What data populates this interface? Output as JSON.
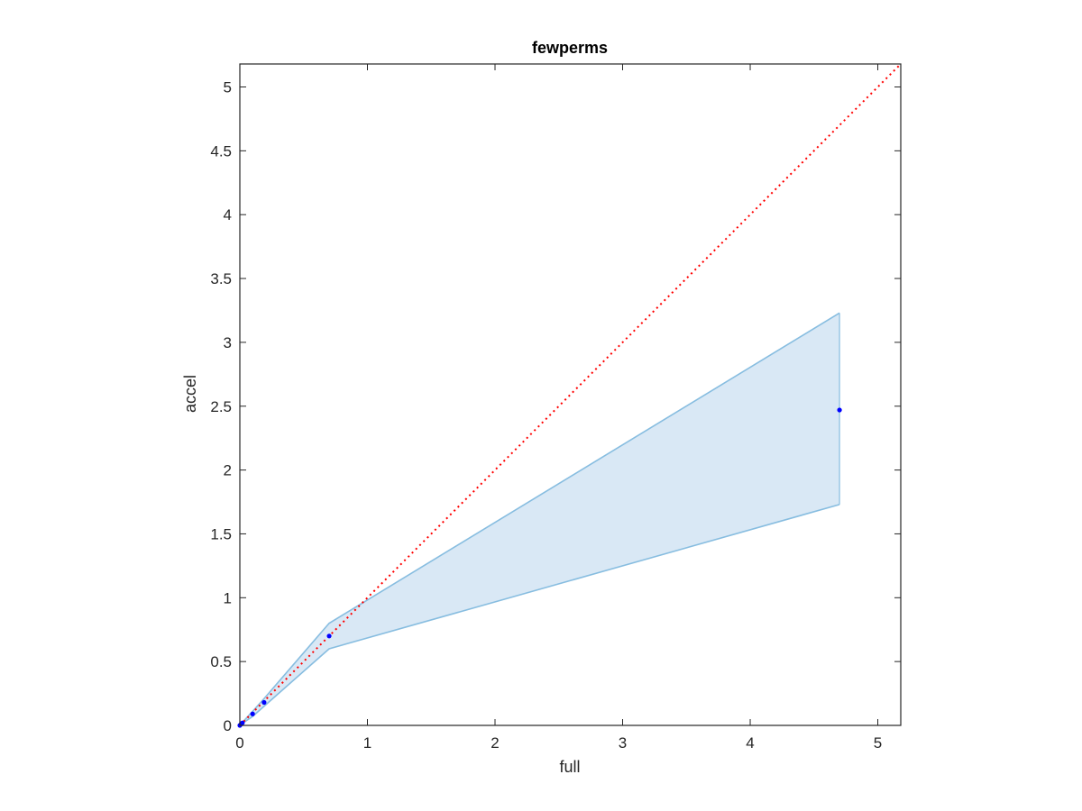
{
  "chart_data": {
    "type": "line",
    "title": "fewperms",
    "xlabel": "full",
    "ylabel": "accel",
    "xlim": [
      0,
      5.18
    ],
    "ylim": [
      0,
      5.18
    ],
    "xticks": [
      0,
      1,
      2,
      3,
      4,
      5
    ],
    "xtick_labels": [
      "0",
      "1",
      "2",
      "3",
      "4",
      "5"
    ],
    "yticks": [
      0,
      0.5,
      1,
      1.5,
      2,
      2.5,
      3,
      3.5,
      4,
      4.5,
      5
    ],
    "ytick_labels": [
      "0",
      "0.5",
      "1",
      "1.5",
      "2",
      "2.5",
      "3",
      "3.5",
      "4",
      "4.5",
      "5"
    ],
    "grid": false,
    "band": {
      "x": [
        0,
        0.01,
        0.02,
        0.1,
        0.19,
        0.7,
        4.7
      ],
      "upper": [
        0,
        0.012,
        0.024,
        0.11,
        0.21,
        0.8,
        3.23
      ],
      "lower": [
        0,
        0.008,
        0.016,
        0.07,
        0.15,
        0.6,
        1.73
      ],
      "fill_color": "#d9e8f5",
      "edge_color": "#87bde0"
    },
    "series": [
      {
        "x": [
          0,
          0.01,
          0.02,
          0.1,
          0.19,
          0.7,
          4.7
        ],
        "values": [
          0,
          0.01,
          0.02,
          0.09,
          0.18,
          0.7,
          2.47
        ],
        "color": "#0000ff",
        "marker": "dot"
      }
    ],
    "reference_line": {
      "x": [
        0,
        5.18
      ],
      "y": [
        0,
        5.18
      ],
      "color": "#ff0000",
      "style": "dotted"
    }
  }
}
